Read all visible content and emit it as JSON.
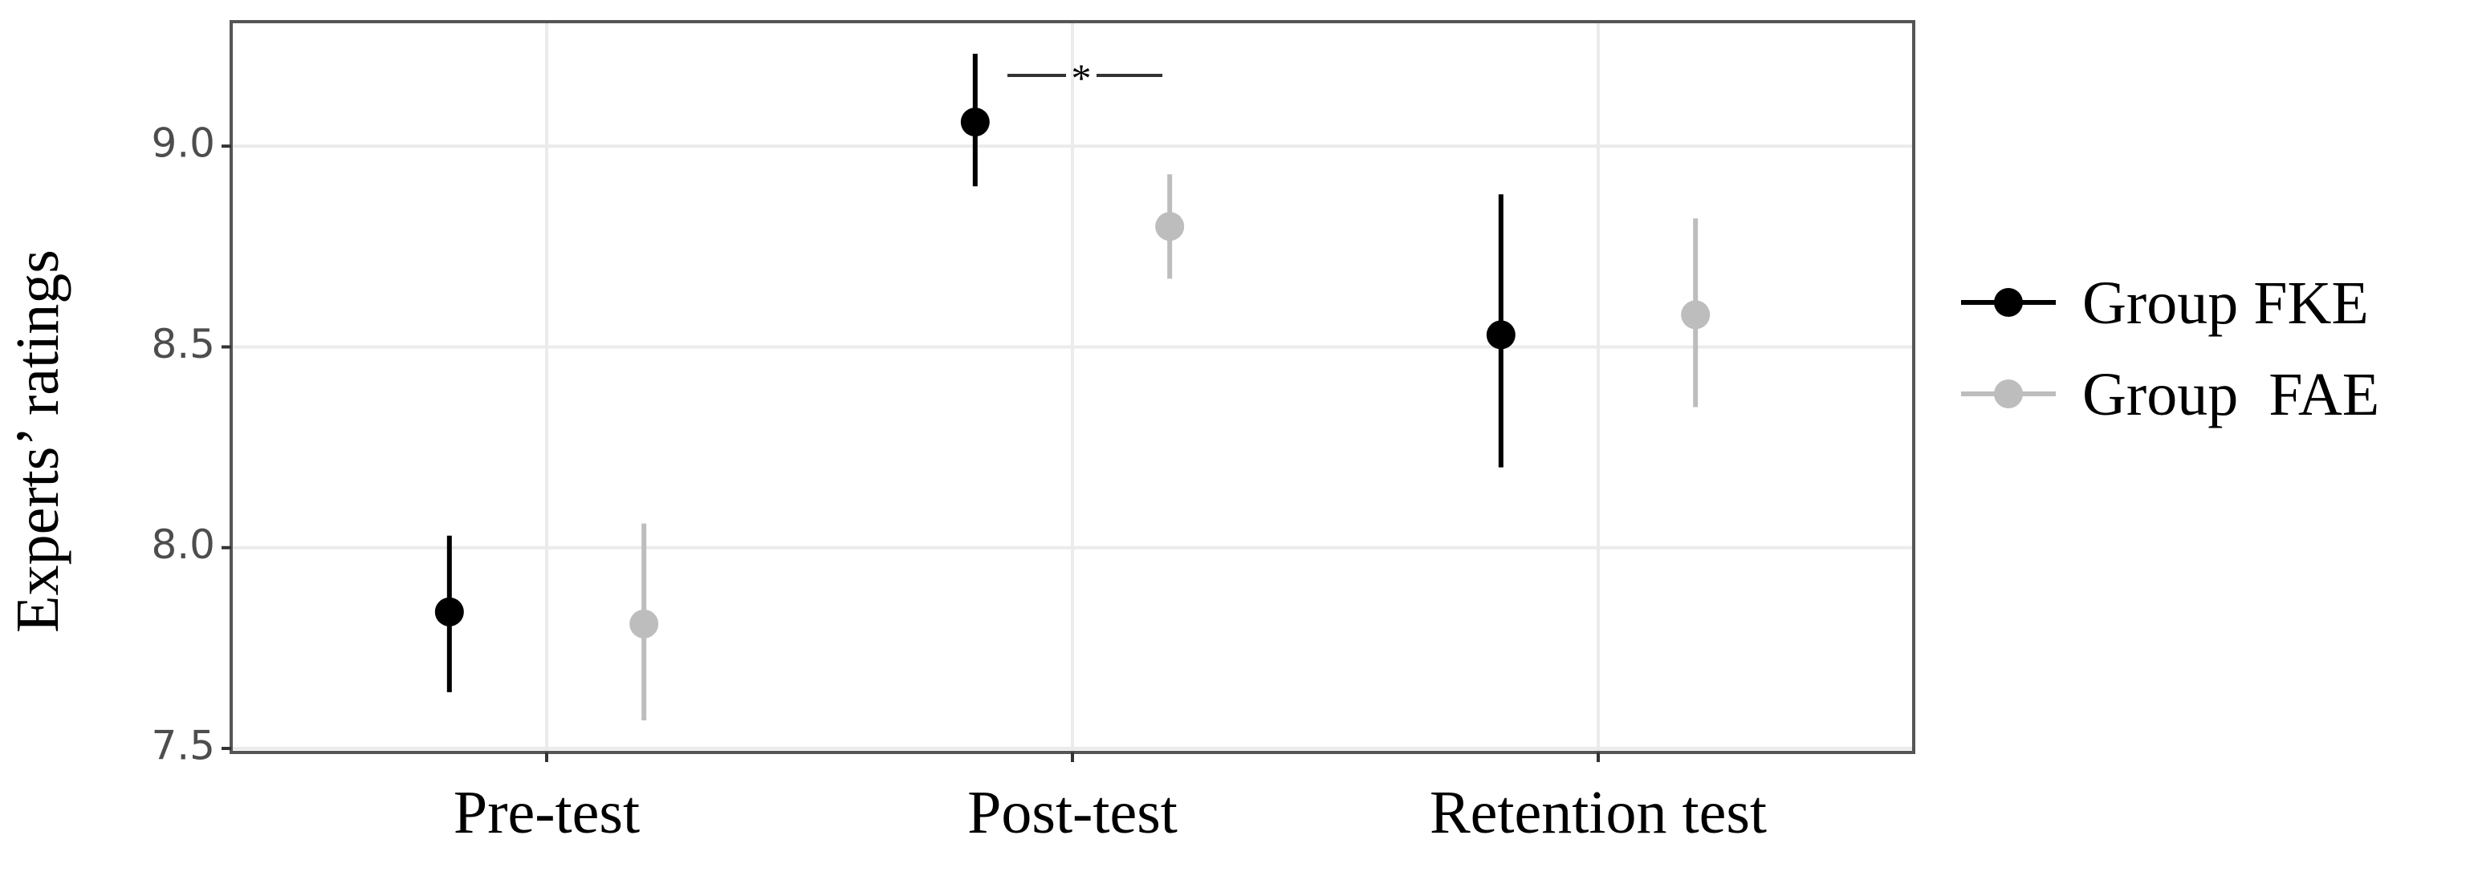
{
  "chart_data": {
    "type": "pointrange",
    "y_label": "Experts’ ratings",
    "categories": [
      "Pre-test",
      "Post-test",
      "Retention test"
    ],
    "series": [
      {
        "name": "Group FKE",
        "color": "#000000",
        "values": [
          7.84,
          9.06,
          8.53
        ],
        "lower": [
          7.64,
          8.9,
          8.2
        ],
        "upper": [
          8.03,
          9.23,
          8.88
        ]
      },
      {
        "name": "Group  FAE",
        "color": "#bdbdbd",
        "values": [
          7.81,
          8.8,
          8.58
        ],
        "lower": [
          7.57,
          8.67,
          8.35
        ],
        "upper": [
          8.06,
          8.93,
          8.82
        ]
      }
    ],
    "annotation": "*",
    "ylim": [
      7.49,
      9.31
    ],
    "yticks": [
      {
        "value": 7.5,
        "label": "7.5"
      },
      {
        "value": 8,
        "label": "8.0"
      },
      {
        "value": 8.5,
        "label": "8.5"
      },
      {
        "value": 9,
        "label": "9.0"
      }
    ],
    "grid": true
  }
}
